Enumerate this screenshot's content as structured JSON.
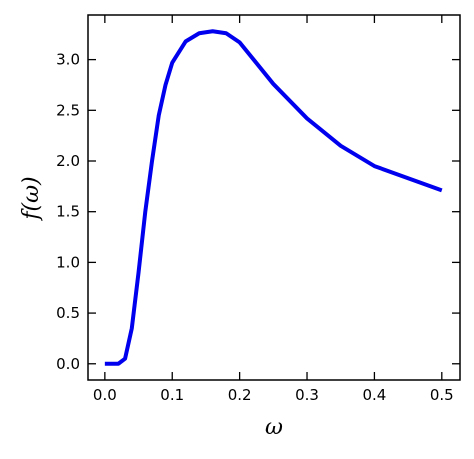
{
  "chart_data": {
    "type": "line",
    "x_label": "ω",
    "y_label": "f(ω)",
    "x": [
      0,
      0.02,
      0.03,
      0.04,
      0.05,
      0.06,
      0.07,
      0.08,
      0.09,
      0.1,
      0.12,
      0.14,
      0.16,
      0.18,
      0.2,
      0.25,
      0.3,
      0.35,
      0.4,
      0.45,
      0.5
    ],
    "series": [
      {
        "color": "#0000ee",
        "values": [
          0,
          0,
          0.05,
          0.35,
          0.9,
          1.5,
          2.0,
          2.45,
          2.75,
          2.97,
          3.18,
          3.26,
          3.28,
          3.26,
          3.17,
          2.76,
          2.42,
          2.15,
          1.95,
          1.83,
          1.71
        ]
      }
    ],
    "xlim": [
      -0.025,
      0.527
    ],
    "ylim": [
      -0.16,
      3.44
    ],
    "xticks": [
      {
        "value": 0,
        "label": "0.0"
      },
      0.1,
      0.2,
      0.3,
      0.4,
      0.5
    ],
    "yticks": [
      {
        "value": 0,
        "label": "0.0"
      },
      0.5,
      {
        "value": 1,
        "label": "1.0"
      },
      1.5,
      {
        "value": 2,
        "label": "2.0"
      },
      2.5,
      {
        "value": 3,
        "label": "3.0"
      }
    ]
  }
}
